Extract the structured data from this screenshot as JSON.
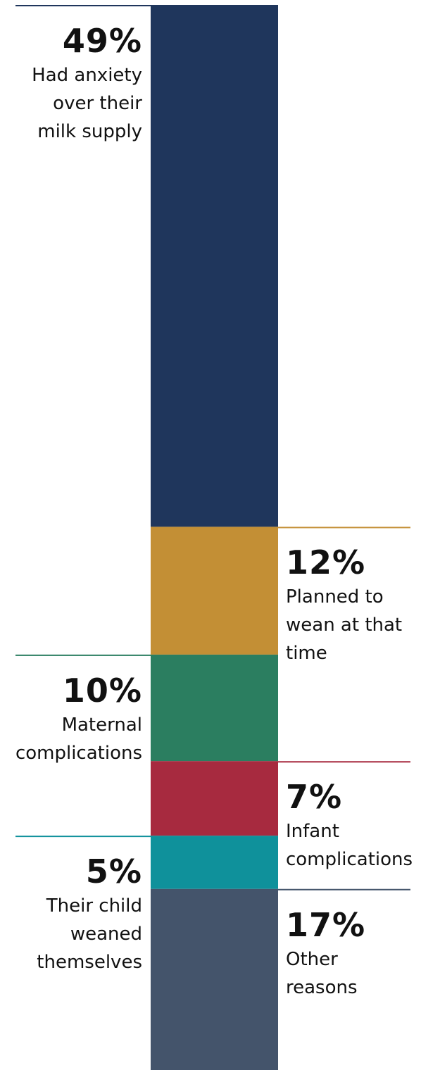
{
  "chart_data": {
    "type": "bar",
    "stacked": true,
    "orientation": "vertical-single-column",
    "segments": [
      {
        "value": 49,
        "value_label": "49%",
        "label_lines": [
          "Had anxiety",
          "over their",
          "milk supply"
        ],
        "color": "#1f365c",
        "side": "left"
      },
      {
        "value": 12,
        "value_label": "12%",
        "label_lines": [
          "Planned to",
          "wean at that",
          "time"
        ],
        "color": "#c38f35",
        "side": "right"
      },
      {
        "value": 10,
        "value_label": "10%",
        "label_lines": [
          "Maternal",
          "complications"
        ],
        "color": "#2b7e60",
        "side": "left"
      },
      {
        "value": 7,
        "value_label": "7%",
        "label_lines": [
          "Infant",
          "complications"
        ],
        "color": "#a72a3f",
        "side": "right"
      },
      {
        "value": 5,
        "value_label": "5%",
        "label_lines": [
          "Their child",
          "weaned",
          "themselves"
        ],
        "color": "#0f919b",
        "side": "left"
      },
      {
        "value": 17,
        "value_label": "17%",
        "label_lines": [
          "Other",
          "reasons"
        ],
        "color": "#44546b",
        "side": "right"
      }
    ]
  }
}
